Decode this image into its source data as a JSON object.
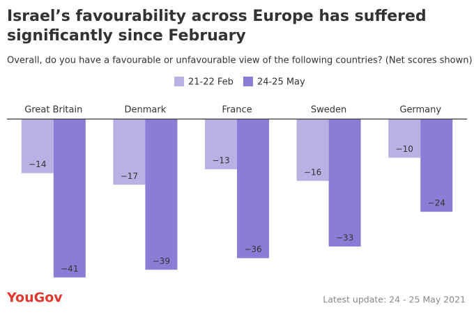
{
  "chart_data": {
    "type": "bar",
    "title": [
      "Israel’s favourability across Europe has suffered",
      "significantly since February"
    ],
    "subtitle": "Overall, do you have a favourable or unfavourable view of the following countries? (Net scores shown)",
    "categories": [
      "Great Britain",
      "Denmark",
      "France",
      "Sweden",
      "Germany"
    ],
    "series": [
      {
        "name": "21-22 Feb",
        "color": "#b9b0e4",
        "values": [
          -14,
          -17,
          -13,
          -16,
          -10
        ],
        "value_labels": [
          "−14",
          "−17",
          "−13",
          "−16",
          "−10"
        ]
      },
      {
        "name": "24-25 May",
        "color": "#8a7dd6",
        "values": [
          -41,
          -39,
          -36,
          -33,
          -24
        ],
        "value_labels": [
          "−41",
          "−39",
          "−36",
          "−33",
          "−24"
        ]
      }
    ],
    "ylim": [
      -42,
      0
    ],
    "source": "YouGov",
    "footnote": "Latest update: 24 - 25 May 2021"
  }
}
